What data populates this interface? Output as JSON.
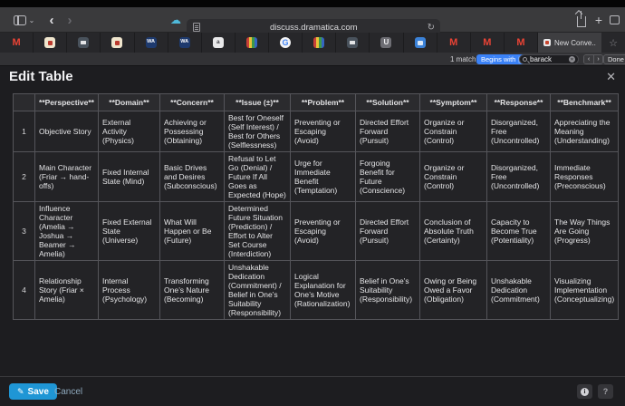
{
  "browser": {
    "address_url": "discuss.dramatica.com",
    "active_tab_label": "New Conve...",
    "pinned_tabs": [
      {
        "kind": "gmail",
        "letter": "M"
      },
      {
        "kind": "forum-cream",
        "letter": ""
      },
      {
        "kind": "mail-dark",
        "letter": ""
      },
      {
        "kind": "forum-cream",
        "letter": ""
      },
      {
        "kind": "wa-navy",
        "letter": "WA"
      },
      {
        "kind": "wa-navy",
        "letter": "WA"
      },
      {
        "kind": "doc-white",
        "letter": "a"
      },
      {
        "kind": "stripes",
        "letter": ""
      },
      {
        "kind": "google",
        "letter": "G"
      },
      {
        "kind": "stripes",
        "letter": ""
      },
      {
        "kind": "mail-dark",
        "letter": ""
      },
      {
        "kind": "u-gray",
        "letter": "U"
      },
      {
        "kind": "blue-app",
        "letter": ""
      },
      {
        "kind": "gmail",
        "letter": "M"
      },
      {
        "kind": "gmail",
        "letter": "M"
      },
      {
        "kind": "gmail",
        "letter": "M"
      }
    ]
  },
  "icons": {
    "back": "‹",
    "forward": "›",
    "chevron_down": "⌄",
    "refresh": "↻",
    "cloud": "☁",
    "plus": "+",
    "star": "☆",
    "pencil": "✎",
    "close": "✕",
    "clear": "✕",
    "info": "i",
    "stepper": "⌃⌄"
  },
  "find_bar": {
    "match_count": "1 match",
    "mode_label": "Begins with",
    "query": "barack",
    "prev_label": "‹",
    "next_label": "›",
    "done_label": "Done"
  },
  "dialog": {
    "title": "Edit Table"
  },
  "footer": {
    "save_label": "Save",
    "cancel_label": "Cancel",
    "help_label": "?"
  },
  "colors": {
    "accent_blue": "#3b82f7",
    "save_button_blue": "#1f96d5",
    "page_background": "#1d1d20"
  },
  "table": {
    "headers": [
      "",
      "**Perspective**",
      "**Domain**",
      "**Concern**",
      "**Issue (±)**",
      "**Problem**",
      "**Solution**",
      "**Symptom**",
      "**Response**",
      "**Benchmark**"
    ],
    "rows": [
      [
        "1",
        "Objective Story",
        "External Activity (Physics)",
        "Achieving or Possessing (Obtaining)",
        "Best for Oneself (Self Interest) / Best for Others (Selflessness)",
        "Preventing or Escaping (Avoid)",
        "Directed Effort Forward (Pursuit)",
        "Organize or Constrain (Control)",
        "Disorganized, Free (Uncontrolled)",
        "Appreciating the Meaning (Understanding)"
      ],
      [
        "2",
        "Main Character (Friar → hand-offs)",
        "Fixed Internal State (Mind)",
        "Basic Drives and Desires (Subconscious)",
        "Refusal to Let Go (Denial) / Future If All Goes as Expected (Hope)",
        "Urge for Immediate Benefit (Temptation)",
        "Forgoing Benefit for Future (Conscience)",
        "Organize or Constrain (Control)",
        "Disorganized, Free (Uncontrolled)",
        "Immediate Responses (Preconscious)"
      ],
      [
        "3",
        "Influence Character (Amelia → Joshua → Beamer → Amelia)",
        "Fixed External State (Universe)",
        "What Will Happen or Be (Future)",
        "Determined Future Situation (Prediction) / Effort to Alter Set Course (Interdiction)",
        "Preventing or Escaping (Avoid)",
        "Directed Effort Forward (Pursuit)",
        "Conclusion of Absolute Truth (Certainty)",
        "Capacity to Become True (Potentiality)",
        "The Way Things Are Going (Progress)"
      ],
      [
        "4",
        "Relationship Story (Friar × Amelia)",
        "Internal Process (Psychology)",
        "Transforming One’s Nature (Becoming)",
        "Unshakable Dedication (Commitment) / Belief in One’s Suitability (Responsibility)",
        "Logical Explanation for One’s Motive (Rationalization)",
        "Belief in One’s Suitability (Responsibility)",
        "Owing or Being Owed a Favor (Obligation)",
        "Unshakable Dedication (Commitment)",
        "Visualizing Implementation (Conceptualizing)"
      ]
    ]
  }
}
